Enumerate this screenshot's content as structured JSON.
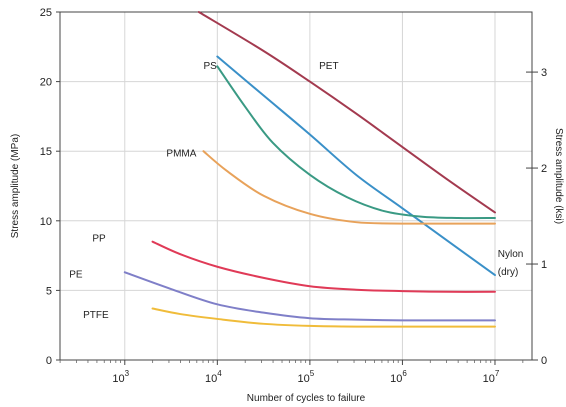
{
  "chart_data": {
    "type": "line",
    "title": "",
    "xlabel": "Number of cycles to failure",
    "ylabel": "Stress amplitude (MPa)",
    "y2label": "Stress amplitude (ksi)",
    "xscale": "log",
    "xlim_exp": [
      2.3,
      7.4
    ],
    "ylim": [
      0,
      25
    ],
    "y2lim": [
      0,
      3.626
    ],
    "x_ticks": [
      {
        "base": "10",
        "exp": "3",
        "value": 3
      },
      {
        "base": "10",
        "exp": "4",
        "value": 4
      },
      {
        "base": "10",
        "exp": "5",
        "value": 5
      },
      {
        "base": "10",
        "exp": "6",
        "value": 6
      },
      {
        "base": "10",
        "exp": "7",
        "value": 7
      }
    ],
    "y_ticks": [
      0,
      5,
      10,
      15,
      20,
      25
    ],
    "y2_ticks": [
      {
        "label": "0",
        "value": 0
      },
      {
        "label": "1",
        "value": 1
      },
      {
        "label": "2",
        "value": 2
      },
      {
        "label": "3",
        "value": 3
      }
    ],
    "grid": true,
    "series": [
      {
        "name": "PET",
        "color": "#a33a4f",
        "label_at": [
          5.1,
          21.2
        ],
        "x": [
          3.8,
          4.5,
          5.0,
          5.5,
          6.0,
          6.5,
          7.0
        ],
        "y": [
          25.0,
          22.2,
          20.0,
          17.7,
          15.3,
          12.9,
          10.6
        ]
      },
      {
        "name": "PS",
        "color": "#3a90c8",
        "label_at": [
          3.85,
          21.2
        ],
        "x": [
          4.0,
          4.5,
          5.0,
          5.5,
          6.0,
          6.5,
          7.0
        ],
        "y": [
          21.8,
          19.0,
          16.2,
          13.3,
          10.9,
          8.5,
          6.1
        ]
      },
      {
        "name": "",
        "color": "#3a9a84",
        "label_at": null,
        "x": [
          4.0,
          4.3,
          4.6,
          5.0,
          5.4,
          5.8,
          6.2,
          6.6,
          7.0
        ],
        "y": [
          21.1,
          18.2,
          15.6,
          13.3,
          11.7,
          10.7,
          10.3,
          10.2,
          10.2
        ]
      },
      {
        "name": "PMMA",
        "color": "#e8a25a",
        "label_at": [
          3.45,
          14.9
        ],
        "x": [
          3.85,
          4.1,
          4.5,
          5.0,
          5.5,
          6.0,
          6.5,
          7.0
        ],
        "y": [
          15.0,
          13.6,
          11.8,
          10.5,
          9.9,
          9.8,
          9.8,
          9.8
        ]
      },
      {
        "name": "PP",
        "color": "#e03a57",
        "label_at": [
          2.65,
          8.8
        ],
        "x": [
          3.3,
          3.6,
          4.0,
          4.5,
          5.0,
          5.5,
          6.0,
          6.5,
          7.0
        ],
        "y": [
          8.5,
          7.6,
          6.7,
          5.9,
          5.3,
          5.05,
          4.95,
          4.9,
          4.9
        ]
      },
      {
        "name": "PE",
        "color": "#7f7fc8",
        "label_at": [
          2.4,
          6.2
        ],
        "x": [
          3.0,
          3.5,
          4.0,
          4.5,
          5.0,
          5.5,
          6.0,
          6.5,
          7.0
        ],
        "y": [
          6.3,
          5.1,
          4.0,
          3.4,
          3.0,
          2.9,
          2.85,
          2.85,
          2.85
        ]
      },
      {
        "name": "PTFE",
        "color": "#f0bc3a",
        "label_at": [
          2.55,
          3.3
        ],
        "x": [
          3.3,
          3.6,
          4.0,
          4.5,
          5.0,
          5.5,
          6.0,
          6.5,
          7.0
        ],
        "y": [
          3.7,
          3.3,
          2.95,
          2.6,
          2.45,
          2.4,
          2.4,
          2.4,
          2.4
        ]
      }
    ],
    "extra_labels": [
      {
        "text": "Nylon",
        "x_exp": 7.03,
        "y": 7.7
      },
      {
        "text": "(dry)",
        "x_exp": 7.03,
        "y": 6.4
      }
    ]
  }
}
